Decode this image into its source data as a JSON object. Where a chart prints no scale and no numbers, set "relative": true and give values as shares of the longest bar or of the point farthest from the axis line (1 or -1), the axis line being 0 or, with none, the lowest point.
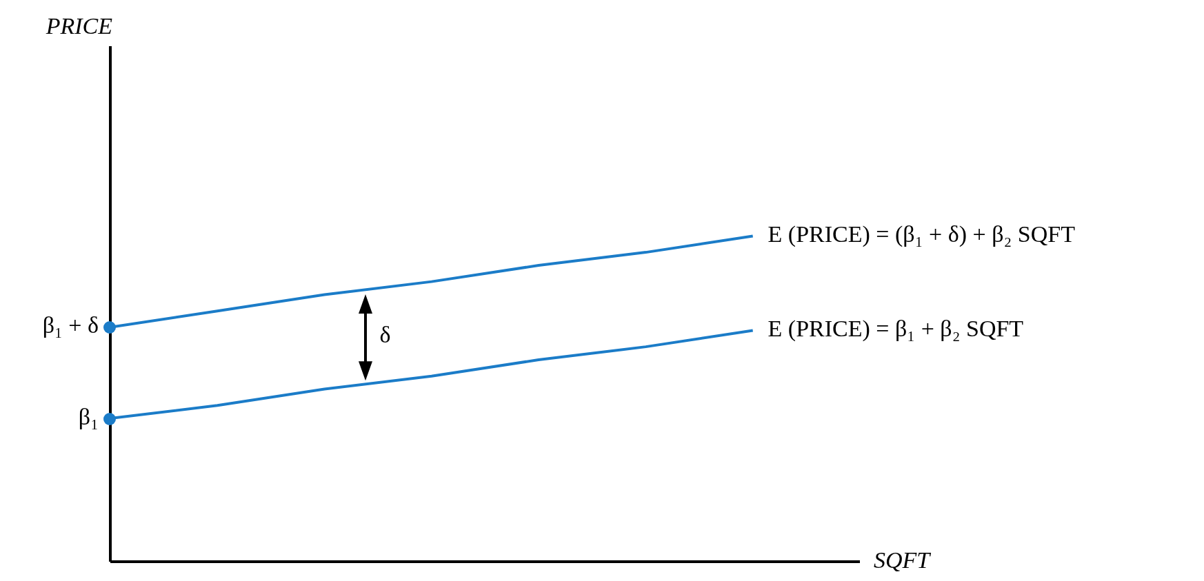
{
  "chart_data": {
    "type": "line",
    "xlabel": "SQFT",
    "relative": true,
    "categories": [
      null,
      null,
      null,
      null,
      null,
      null,
      null
    ],
    "series": [
      {
        "name": "E (PRICE) = (β₁ + δ) + β₂ SQFT",
        "color": "#1b7cc8",
        "values": [
          0.72,
          0.77,
          0.82,
          0.86,
          0.91,
          0.95,
          1.0
        ]
      },
      {
        "name": "E (PRICE) = β₁ + β₂ SQFT",
        "color": "#1b7cc8",
        "values": [
          0.44,
          0.48,
          0.53,
          0.57,
          0.62,
          0.66,
          0.71
        ]
      }
    ],
    "annotations": [
      "β₁ + δ",
      "β₁",
      "δ",
      "PRICE"
    ],
    "line_style": "solid",
    "grid": false,
    "legend": false
  }
}
